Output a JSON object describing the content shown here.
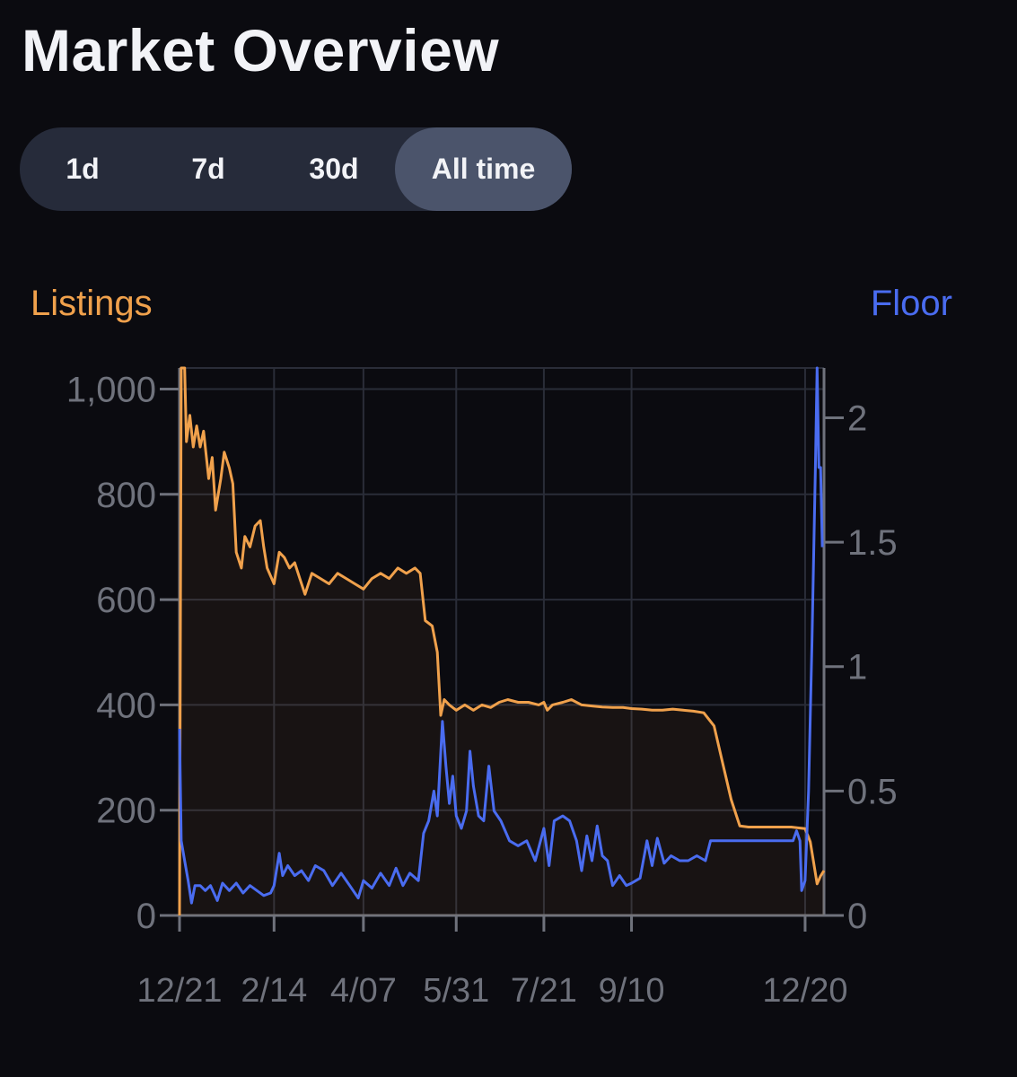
{
  "page": {
    "title": "Market Overview"
  },
  "range_tabs": {
    "items": [
      {
        "label": "1d",
        "active": false
      },
      {
        "label": "7d",
        "active": false
      },
      {
        "label": "30d",
        "active": false
      },
      {
        "label": "All time",
        "active": true
      }
    ]
  },
  "colors": {
    "listings": "#f0a14c",
    "floor": "#4a6cf0",
    "grid": "#2a2d38",
    "tick": "#6f727c",
    "text": "#f2f3f7"
  },
  "chart_data": {
    "type": "line",
    "legend_left": "Listings",
    "legend_right": "Floor",
    "x_tick_labels": [
      "12/21",
      "2/14",
      "4/07",
      "5/31",
      "7/21",
      "9/10",
      "12/20"
    ],
    "x_range": [
      "2021-12-21",
      "2022-12-31"
    ],
    "y_left": {
      "label": "Listings",
      "range": [
        0,
        1040
      ],
      "ticks": [
        0,
        200,
        400,
        600,
        800,
        1000
      ],
      "tick_labels": [
        "0",
        "200",
        "400",
        "600",
        "800",
        "1,000"
      ]
    },
    "y_right": {
      "label": "Floor",
      "range": [
        0,
        2.2
      ],
      "ticks": [
        0,
        0.5,
        1,
        1.5,
        2
      ],
      "tick_labels": [
        "0",
        "0.5",
        "1",
        "1.5",
        "2"
      ]
    },
    "grid": true,
    "series": [
      {
        "name": "Listings",
        "axis": "left",
        "area_fill": true,
        "points": [
          [
            "2021-12-21",
            0
          ],
          [
            "2021-12-22",
            1040
          ],
          [
            "2021-12-24",
            1040
          ],
          [
            "2021-12-25",
            900
          ],
          [
            "2021-12-27",
            950
          ],
          [
            "2021-12-29",
            890
          ],
          [
            "2021-12-31",
            930
          ],
          [
            "2022-01-02",
            890
          ],
          [
            "2022-01-04",
            920
          ],
          [
            "2022-01-07",
            830
          ],
          [
            "2022-01-09",
            870
          ],
          [
            "2022-01-11",
            770
          ],
          [
            "2022-01-14",
            830
          ],
          [
            "2022-01-16",
            880
          ],
          [
            "2022-01-19",
            850
          ],
          [
            "2022-01-21",
            820
          ],
          [
            "2022-01-23",
            690
          ],
          [
            "2022-01-26",
            660
          ],
          [
            "2022-01-28",
            720
          ],
          [
            "2022-01-31",
            700
          ],
          [
            "2022-02-03",
            740
          ],
          [
            "2022-02-06",
            750
          ],
          [
            "2022-02-08",
            700
          ],
          [
            "2022-02-10",
            660
          ],
          [
            "2022-02-14",
            630
          ],
          [
            "2022-02-17",
            690
          ],
          [
            "2022-02-20",
            680
          ],
          [
            "2022-02-23",
            660
          ],
          [
            "2022-02-26",
            670
          ],
          [
            "2022-03-01",
            640
          ],
          [
            "2022-03-04",
            610
          ],
          [
            "2022-03-08",
            650
          ],
          [
            "2022-03-13",
            640
          ],
          [
            "2022-03-18",
            630
          ],
          [
            "2022-03-23",
            650
          ],
          [
            "2022-03-28",
            640
          ],
          [
            "2022-04-02",
            630
          ],
          [
            "2022-04-07",
            620
          ],
          [
            "2022-04-12",
            640
          ],
          [
            "2022-04-17",
            650
          ],
          [
            "2022-04-22",
            640
          ],
          [
            "2022-04-27",
            660
          ],
          [
            "2022-05-02",
            650
          ],
          [
            "2022-05-07",
            660
          ],
          [
            "2022-05-10",
            650
          ],
          [
            "2022-05-13",
            560
          ],
          [
            "2022-05-17",
            550
          ],
          [
            "2022-05-20",
            500
          ],
          [
            "2022-05-22",
            380
          ],
          [
            "2022-05-24",
            410
          ],
          [
            "2022-05-27",
            400
          ],
          [
            "2022-05-31",
            390
          ],
          [
            "2022-06-05",
            400
          ],
          [
            "2022-06-10",
            390
          ],
          [
            "2022-06-15",
            400
          ],
          [
            "2022-06-20",
            395
          ],
          [
            "2022-06-25",
            405
          ],
          [
            "2022-06-30",
            410
          ],
          [
            "2022-07-06",
            405
          ],
          [
            "2022-07-12",
            405
          ],
          [
            "2022-07-18",
            400
          ],
          [
            "2022-07-21",
            405
          ],
          [
            "2022-07-23",
            390
          ],
          [
            "2022-07-26",
            400
          ],
          [
            "2022-08-01",
            405
          ],
          [
            "2022-08-06",
            410
          ],
          [
            "2022-08-12",
            400
          ],
          [
            "2022-08-18",
            398
          ],
          [
            "2022-08-24",
            396
          ],
          [
            "2022-08-30",
            395
          ],
          [
            "2022-09-05",
            395
          ],
          [
            "2022-09-10",
            393
          ],
          [
            "2022-09-16",
            392
          ],
          [
            "2022-09-22",
            390
          ],
          [
            "2022-09-28",
            390
          ],
          [
            "2022-10-04",
            392
          ],
          [
            "2022-10-10",
            390
          ],
          [
            "2022-10-16",
            388
          ],
          [
            "2022-10-22",
            385
          ],
          [
            "2022-10-28",
            360
          ],
          [
            "2022-11-02",
            290
          ],
          [
            "2022-11-07",
            220
          ],
          [
            "2022-11-12",
            170
          ],
          [
            "2022-11-17",
            168
          ],
          [
            "2022-11-22",
            168
          ],
          [
            "2022-11-27",
            168
          ],
          [
            "2022-12-02",
            168
          ],
          [
            "2022-12-07",
            168
          ],
          [
            "2022-12-12",
            168
          ],
          [
            "2022-12-17",
            166
          ],
          [
            "2022-12-20",
            165
          ],
          [
            "2022-12-23",
            140
          ],
          [
            "2022-12-25",
            100
          ],
          [
            "2022-12-27",
            60
          ],
          [
            "2022-12-29",
            75
          ],
          [
            "2022-12-31",
            85
          ]
        ]
      },
      {
        "name": "Floor",
        "axis": "right",
        "area_fill": false,
        "points": [
          [
            "2021-12-21",
            0.75
          ],
          [
            "2021-12-22",
            0.3
          ],
          [
            "2021-12-24",
            0.22
          ],
          [
            "2021-12-26",
            0.14
          ],
          [
            "2021-12-28",
            0.05
          ],
          [
            "2021-12-30",
            0.12
          ],
          [
            "2022-01-02",
            0.12
          ],
          [
            "2022-01-05",
            0.1
          ],
          [
            "2022-01-08",
            0.12
          ],
          [
            "2022-01-12",
            0.06
          ],
          [
            "2022-01-15",
            0.13
          ],
          [
            "2022-01-19",
            0.1
          ],
          [
            "2022-01-23",
            0.13
          ],
          [
            "2022-01-27",
            0.09
          ],
          [
            "2022-01-31",
            0.12
          ],
          [
            "2022-02-04",
            0.1
          ],
          [
            "2022-02-08",
            0.08
          ],
          [
            "2022-02-12",
            0.09
          ],
          [
            "2022-02-14",
            0.12
          ],
          [
            "2022-02-17",
            0.25
          ],
          [
            "2022-02-19",
            0.16
          ],
          [
            "2022-02-22",
            0.2
          ],
          [
            "2022-02-26",
            0.16
          ],
          [
            "2022-03-02",
            0.18
          ],
          [
            "2022-03-06",
            0.14
          ],
          [
            "2022-03-10",
            0.2
          ],
          [
            "2022-03-15",
            0.18
          ],
          [
            "2022-03-20",
            0.12
          ],
          [
            "2022-03-25",
            0.17
          ],
          [
            "2022-03-30",
            0.12
          ],
          [
            "2022-04-04",
            0.07
          ],
          [
            "2022-04-07",
            0.14
          ],
          [
            "2022-04-12",
            0.11
          ],
          [
            "2022-04-17",
            0.17
          ],
          [
            "2022-04-22",
            0.12
          ],
          [
            "2022-04-26",
            0.19
          ],
          [
            "2022-04-30",
            0.12
          ],
          [
            "2022-05-04",
            0.17
          ],
          [
            "2022-05-09",
            0.14
          ],
          [
            "2022-05-12",
            0.33
          ],
          [
            "2022-05-15",
            0.38
          ],
          [
            "2022-05-18",
            0.5
          ],
          [
            "2022-05-20",
            0.4
          ],
          [
            "2022-05-23",
            0.78
          ],
          [
            "2022-05-25",
            0.6
          ],
          [
            "2022-05-27",
            0.45
          ],
          [
            "2022-05-29",
            0.56
          ],
          [
            "2022-05-31",
            0.4
          ],
          [
            "2022-06-03",
            0.35
          ],
          [
            "2022-06-06",
            0.42
          ],
          [
            "2022-06-08",
            0.66
          ],
          [
            "2022-06-10",
            0.52
          ],
          [
            "2022-06-13",
            0.4
          ],
          [
            "2022-06-16",
            0.38
          ],
          [
            "2022-06-19",
            0.6
          ],
          [
            "2022-06-22",
            0.42
          ],
          [
            "2022-06-26",
            0.38
          ],
          [
            "2022-07-01",
            0.3
          ],
          [
            "2022-07-06",
            0.28
          ],
          [
            "2022-07-11",
            0.3
          ],
          [
            "2022-07-16",
            0.22
          ],
          [
            "2022-07-21",
            0.35
          ],
          [
            "2022-07-24",
            0.2
          ],
          [
            "2022-07-27",
            0.38
          ],
          [
            "2022-08-01",
            0.4
          ],
          [
            "2022-08-05",
            0.38
          ],
          [
            "2022-08-09",
            0.3
          ],
          [
            "2022-08-12",
            0.18
          ],
          [
            "2022-08-15",
            0.32
          ],
          [
            "2022-08-18",
            0.22
          ],
          [
            "2022-08-21",
            0.36
          ],
          [
            "2022-08-24",
            0.24
          ],
          [
            "2022-08-27",
            0.22
          ],
          [
            "2022-08-30",
            0.12
          ],
          [
            "2022-09-03",
            0.16
          ],
          [
            "2022-09-07",
            0.12
          ],
          [
            "2022-09-10",
            0.13
          ],
          [
            "2022-09-15",
            0.15
          ],
          [
            "2022-09-19",
            0.3
          ],
          [
            "2022-09-22",
            0.2
          ],
          [
            "2022-09-25",
            0.31
          ],
          [
            "2022-09-29",
            0.21
          ],
          [
            "2022-10-03",
            0.24
          ],
          [
            "2022-10-08",
            0.22
          ],
          [
            "2022-10-13",
            0.22
          ],
          [
            "2022-10-18",
            0.24
          ],
          [
            "2022-10-23",
            0.22
          ],
          [
            "2022-10-26",
            0.3
          ],
          [
            "2022-11-01",
            0.3
          ],
          [
            "2022-11-08",
            0.3
          ],
          [
            "2022-11-15",
            0.3
          ],
          [
            "2022-11-22",
            0.3
          ],
          [
            "2022-12-01",
            0.3
          ],
          [
            "2022-12-10",
            0.3
          ],
          [
            "2022-12-13",
            0.3
          ],
          [
            "2022-12-15",
            0.34
          ],
          [
            "2022-12-17",
            0.3
          ],
          [
            "2022-12-18",
            0.1
          ],
          [
            "2022-12-20",
            0.14
          ],
          [
            "2022-12-22",
            0.5
          ],
          [
            "2022-12-24",
            1.1
          ],
          [
            "2022-12-26",
            1.8
          ],
          [
            "2022-12-27",
            2.22
          ],
          [
            "2022-12-28",
            1.8
          ],
          [
            "2022-12-29",
            1.8
          ],
          [
            "2022-12-30",
            1.48
          ]
        ]
      }
    ]
  }
}
